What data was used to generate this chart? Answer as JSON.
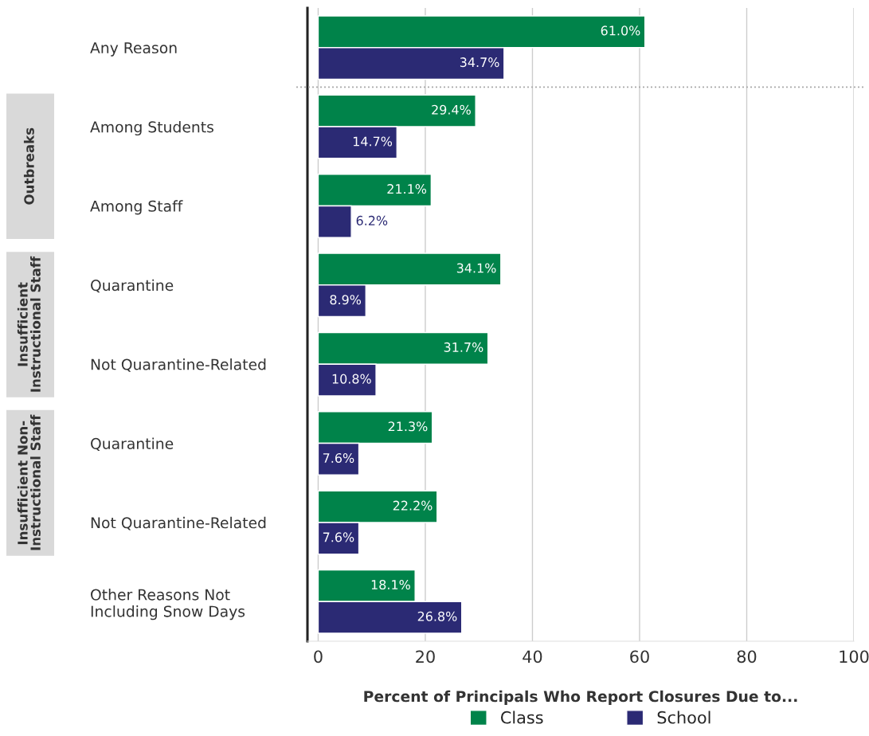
{
  "chart_data": {
    "type": "bar",
    "orientation": "horizontal",
    "xlabel": "Percent of Principals Who Report Closures Due to...",
    "categories": [
      "Any Reason",
      "Among Students",
      "Among Staff",
      "Quarantine",
      "Not Quarantine-Related",
      "Quarantine",
      "Not Quarantine-Related",
      "Other Reasons Not\nIncluding Snow Days"
    ],
    "series": [
      {
        "name": "Class",
        "color": "#00834a",
        "values": [
          61.0,
          29.4,
          21.1,
          34.1,
          31.7,
          21.3,
          22.2,
          18.1
        ],
        "value_labels": [
          "61.0%",
          "29.4%",
          "21.1%",
          "34.1%",
          "31.7%",
          "21.3%",
          "22.2%",
          "18.1%"
        ]
      },
      {
        "name": "School",
        "color": "#2b2a74",
        "values": [
          34.7,
          14.7,
          6.2,
          8.9,
          10.8,
          7.6,
          7.6,
          26.8
        ],
        "value_labels": [
          "34.7%",
          "14.7%",
          "6.2%",
          "8.9%",
          "10.8%",
          "7.6%",
          "7.6%",
          "26.8%"
        ]
      }
    ],
    "xlim": [
      -2,
      100
    ],
    "xticks": [
      0,
      20,
      40,
      60,
      80,
      100
    ],
    "grid": "x",
    "legend": "bottom",
    "annotations": [
      "Outbreaks",
      "Insufficient\nInstructional Staff",
      "Insufficient Non-\nInstructional Staff"
    ]
  }
}
